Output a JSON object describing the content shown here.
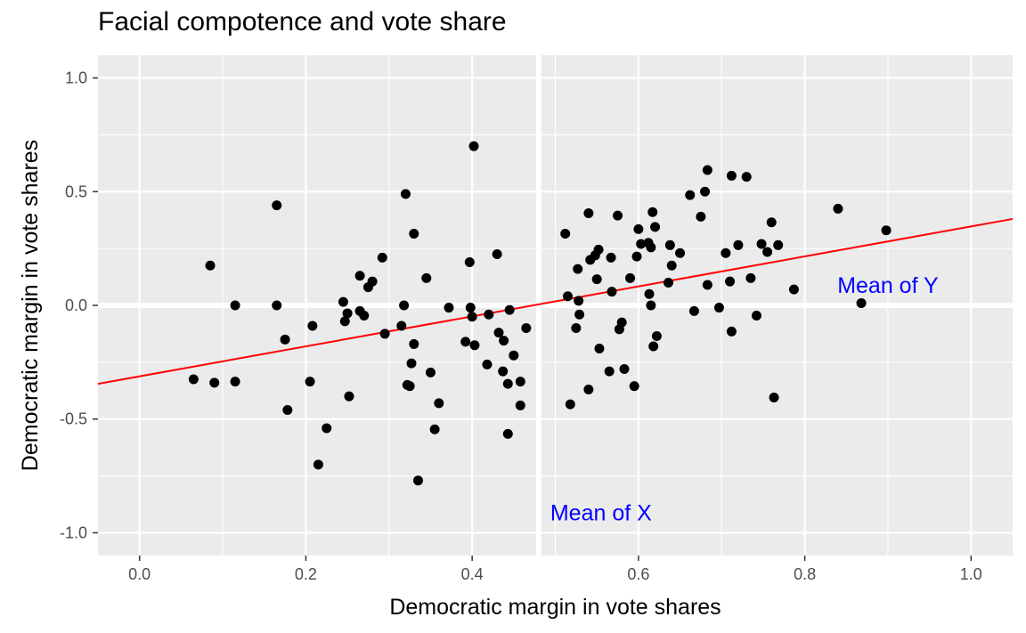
{
  "chart_data": {
    "type": "scatter",
    "title": "Facial compotence and vote share",
    "xlabel": "Democratic margin in vote shares",
    "ylabel": "Democratic margin in vote shares",
    "xlim": [
      -0.05,
      1.05
    ],
    "ylim": [
      -1.1,
      1.1
    ],
    "x_ticks": [
      0.0,
      0.2,
      0.4,
      0.6,
      0.8,
      1.0
    ],
    "x_tick_labels": [
      "0.0",
      "0.2",
      "0.4",
      "0.6",
      "0.8",
      "1.0"
    ],
    "y_ticks": [
      -1.0,
      -0.5,
      0.0,
      0.5,
      1.0
    ],
    "y_tick_labels": [
      "-1.0",
      "-0.5",
      "0.0",
      "0.5",
      "1.0"
    ],
    "grid": true,
    "mean_x": 0.48,
    "mean_y": 0.0,
    "regression_line": {
      "x": [
        -0.05,
        1.05
      ],
      "y": [
        -0.345,
        0.38
      ],
      "color": "#ff0000"
    },
    "annotations": [
      {
        "text": "Mean of X",
        "x": 0.555,
        "y": -0.91,
        "color": "#0000ff"
      },
      {
        "text": "Mean of Y",
        "x": 0.9,
        "y": 0.09,
        "color": "#0000ff"
      }
    ],
    "points": [
      {
        "x": 0.065,
        "y": -0.325
      },
      {
        "x": 0.085,
        "y": 0.175
      },
      {
        "x": 0.09,
        "y": -0.34
      },
      {
        "x": 0.115,
        "y": -0.335
      },
      {
        "x": 0.115,
        "y": 0.0
      },
      {
        "x": 0.165,
        "y": 0.44
      },
      {
        "x": 0.165,
        "y": 0.0
      },
      {
        "x": 0.175,
        "y": -0.15
      },
      {
        "x": 0.178,
        "y": -0.46
      },
      {
        "x": 0.205,
        "y": -0.335
      },
      {
        "x": 0.208,
        "y": -0.09
      },
      {
        "x": 0.215,
        "y": -0.7
      },
      {
        "x": 0.225,
        "y": -0.54
      },
      {
        "x": 0.245,
        "y": 0.015
      },
      {
        "x": 0.247,
        "y": -0.07
      },
      {
        "x": 0.25,
        "y": -0.035
      },
      {
        "x": 0.252,
        "y": -0.4
      },
      {
        "x": 0.265,
        "y": 0.13
      },
      {
        "x": 0.265,
        "y": -0.025
      },
      {
        "x": 0.27,
        "y": -0.045
      },
      {
        "x": 0.275,
        "y": 0.08
      },
      {
        "x": 0.28,
        "y": 0.105
      },
      {
        "x": 0.292,
        "y": 0.21
      },
      {
        "x": 0.295,
        "y": -0.125
      },
      {
        "x": 0.315,
        "y": -0.09
      },
      {
        "x": 0.318,
        "y": 0.0
      },
      {
        "x": 0.32,
        "y": 0.49
      },
      {
        "x": 0.322,
        "y": -0.35
      },
      {
        "x": 0.325,
        "y": -0.355
      },
      {
        "x": 0.327,
        "y": -0.255
      },
      {
        "x": 0.33,
        "y": 0.315
      },
      {
        "x": 0.33,
        "y": -0.17
      },
      {
        "x": 0.335,
        "y": -0.77
      },
      {
        "x": 0.345,
        "y": 0.12
      },
      {
        "x": 0.35,
        "y": -0.295
      },
      {
        "x": 0.355,
        "y": -0.545
      },
      {
        "x": 0.36,
        "y": -0.43
      },
      {
        "x": 0.372,
        "y": -0.01
      },
      {
        "x": 0.392,
        "y": -0.16
      },
      {
        "x": 0.397,
        "y": 0.19
      },
      {
        "x": 0.398,
        "y": -0.01
      },
      {
        "x": 0.4,
        "y": -0.05
      },
      {
        "x": 0.402,
        "y": 0.7
      },
      {
        "x": 0.403,
        "y": -0.175
      },
      {
        "x": 0.418,
        "y": -0.26
      },
      {
        "x": 0.42,
        "y": -0.04
      },
      {
        "x": 0.43,
        "y": 0.225
      },
      {
        "x": 0.432,
        "y": -0.12
      },
      {
        "x": 0.437,
        "y": -0.29
      },
      {
        "x": 0.438,
        "y": -0.155
      },
      {
        "x": 0.443,
        "y": -0.345
      },
      {
        "x": 0.443,
        "y": -0.565
      },
      {
        "x": 0.445,
        "y": -0.02
      },
      {
        "x": 0.45,
        "y": -0.22
      },
      {
        "x": 0.458,
        "y": -0.335
      },
      {
        "x": 0.458,
        "y": -0.44
      },
      {
        "x": 0.465,
        "y": -0.1
      },
      {
        "x": 0.512,
        "y": 0.315
      },
      {
        "x": 0.515,
        "y": 0.04
      },
      {
        "x": 0.518,
        "y": -0.435
      },
      {
        "x": 0.525,
        "y": -0.1
      },
      {
        "x": 0.527,
        "y": 0.16
      },
      {
        "x": 0.528,
        "y": 0.02
      },
      {
        "x": 0.529,
        "y": -0.04
      },
      {
        "x": 0.54,
        "y": 0.405
      },
      {
        "x": 0.54,
        "y": -0.37
      },
      {
        "x": 0.542,
        "y": 0.2
      },
      {
        "x": 0.548,
        "y": 0.22
      },
      {
        "x": 0.55,
        "y": 0.115
      },
      {
        "x": 0.552,
        "y": 0.245
      },
      {
        "x": 0.553,
        "y": -0.19
      },
      {
        "x": 0.565,
        "y": -0.29
      },
      {
        "x": 0.567,
        "y": 0.21
      },
      {
        "x": 0.568,
        "y": 0.06
      },
      {
        "x": 0.575,
        "y": 0.395
      },
      {
        "x": 0.577,
        "y": -0.105
      },
      {
        "x": 0.58,
        "y": -0.075
      },
      {
        "x": 0.583,
        "y": -0.28
      },
      {
        "x": 0.59,
        "y": 0.12
      },
      {
        "x": 0.595,
        "y": -0.355
      },
      {
        "x": 0.598,
        "y": 0.215
      },
      {
        "x": 0.6,
        "y": 0.335
      },
      {
        "x": 0.603,
        "y": 0.27
      },
      {
        "x": 0.612,
        "y": 0.275
      },
      {
        "x": 0.613,
        "y": 0.05
      },
      {
        "x": 0.615,
        "y": 0.0
      },
      {
        "x": 0.615,
        "y": 0.255
      },
      {
        "x": 0.617,
        "y": 0.41
      },
      {
        "x": 0.618,
        "y": -0.18
      },
      {
        "x": 0.62,
        "y": 0.345
      },
      {
        "x": 0.622,
        "y": -0.135
      },
      {
        "x": 0.636,
        "y": 0.1
      },
      {
        "x": 0.638,
        "y": 0.265
      },
      {
        "x": 0.64,
        "y": 0.175
      },
      {
        "x": 0.65,
        "y": 0.23
      },
      {
        "x": 0.662,
        "y": 0.485
      },
      {
        "x": 0.667,
        "y": -0.025
      },
      {
        "x": 0.675,
        "y": 0.39
      },
      {
        "x": 0.68,
        "y": 0.5
      },
      {
        "x": 0.683,
        "y": 0.595
      },
      {
        "x": 0.683,
        "y": 0.09
      },
      {
        "x": 0.697,
        "y": -0.01
      },
      {
        "x": 0.705,
        "y": 0.23
      },
      {
        "x": 0.71,
        "y": 0.105
      },
      {
        "x": 0.712,
        "y": 0.57
      },
      {
        "x": 0.712,
        "y": -0.115
      },
      {
        "x": 0.72,
        "y": 0.265
      },
      {
        "x": 0.73,
        "y": 0.565
      },
      {
        "x": 0.735,
        "y": 0.12
      },
      {
        "x": 0.742,
        "y": -0.045
      },
      {
        "x": 0.748,
        "y": 0.27
      },
      {
        "x": 0.755,
        "y": 0.235
      },
      {
        "x": 0.76,
        "y": 0.365
      },
      {
        "x": 0.763,
        "y": -0.405
      },
      {
        "x": 0.768,
        "y": 0.265
      },
      {
        "x": 0.787,
        "y": 0.07
      },
      {
        "x": 0.84,
        "y": 0.425
      },
      {
        "x": 0.868,
        "y": 0.01
      },
      {
        "x": 0.898,
        "y": 0.33
      }
    ]
  }
}
